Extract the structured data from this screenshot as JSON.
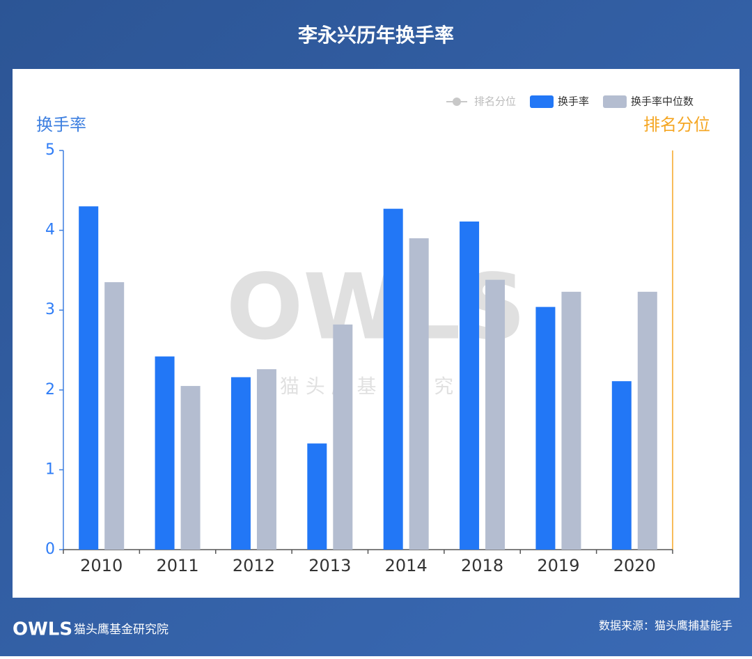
{
  "title": "李永兴历年换手率",
  "footer": {
    "brand": "猫头鹰基金研究院",
    "logo": "OWLS",
    "source": "数据来源：猫头鹰捕基能手"
  },
  "watermark": {
    "logo": "OWLS",
    "text": "猫 头 鹰 基 金 研 究 院"
  },
  "chart_data": {
    "type": "bar",
    "categories": [
      "2010",
      "2011",
      "2012",
      "2013",
      "2014",
      "2018",
      "2019",
      "2020"
    ],
    "series": [
      {
        "name": "排名分位",
        "color": "#c8c8c8",
        "axis": "y2",
        "values": [
          null,
          null,
          null,
          null,
          null,
          null,
          null,
          null
        ]
      },
      {
        "name": "换手率",
        "color": "#2277f6",
        "values": [
          4.3,
          2.42,
          2.16,
          1.33,
          4.27,
          4.11,
          3.04,
          2.11
        ]
      },
      {
        "name": "换手率中位数",
        "color": "#b4bdd0",
        "values": [
          3.35,
          2.05,
          2.26,
          2.82,
          3.9,
          3.38,
          3.23,
          3.23
        ]
      }
    ],
    "ylabel": "换手率",
    "y2label": "排名分位",
    "ylim": [
      0,
      5
    ],
    "yticks": [
      0,
      1,
      2,
      3,
      4,
      5
    ],
    "legend": "top-right"
  }
}
